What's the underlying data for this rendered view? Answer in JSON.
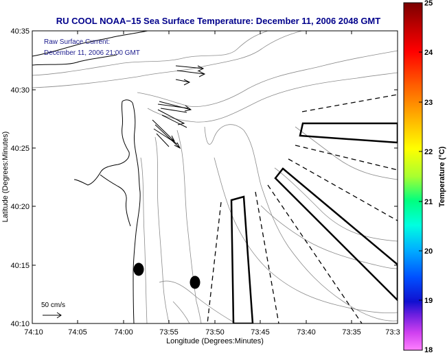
{
  "title": "RU COOL  NOAA−15  Sea Surface Temperature:  December 11, 2006 2048 GMT",
  "annotation": {
    "line1": "Raw Surface Current:",
    "line2": "December 11, 2006 21:00 GMT"
  },
  "xlabel": "Longitude (Degrees:Minutes)",
  "ylabel": "Latitude (Degrees:Minutes)",
  "x_ticks": [
    "74:10",
    "74:05",
    "74:00",
    "73:55",
    "73:50",
    "73:45",
    "73:40",
    "73:35",
    "73:3"
  ],
  "y_ticks": [
    "40:35",
    "40:30",
    "40:25",
    "40:20",
    "40:15",
    "40:10"
  ],
  "scale_label": "50 cm/s",
  "colorbar": {
    "label": "Temperature (°C)",
    "ticks": [
      "25",
      "24",
      "23",
      "22",
      "21",
      "20",
      "19",
      "18"
    ],
    "range": [
      18,
      25
    ]
  },
  "colors": {
    "title": "#00008b",
    "annotation": "#1a1a8c",
    "frame": "#000000",
    "contour": "#8a8a8a"
  }
}
